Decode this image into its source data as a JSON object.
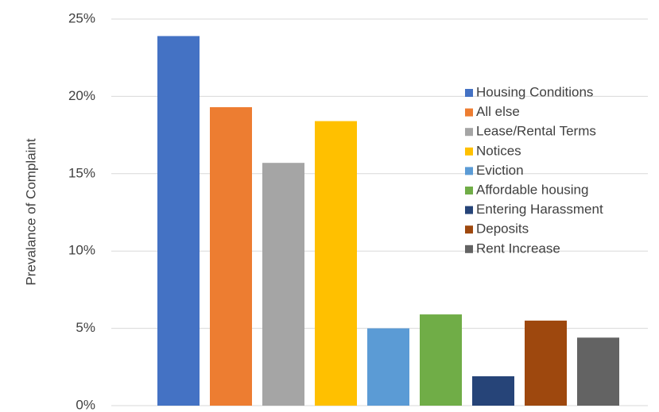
{
  "chart_data": {
    "type": "bar",
    "y_label": "Prevalance of Complaint",
    "categories": [
      null
    ],
    "series": [
      {
        "name": "Housing Conditions",
        "color": "#4472c4",
        "values": [
          23.9
        ]
      },
      {
        "name": "All else",
        "color": "#ed7d31",
        "values": [
          19.3
        ]
      },
      {
        "name": "Lease/Rental Terms",
        "color": "#a5a5a5",
        "values": [
          15.7
        ]
      },
      {
        "name": "Notices",
        "color": "#ffc000",
        "values": [
          18.4
        ]
      },
      {
        "name": "Eviction",
        "color": "#5b9bd5",
        "values": [
          5.0
        ]
      },
      {
        "name": "Affordable housing",
        "color": "#70ad47",
        "values": [
          5.9
        ]
      },
      {
        "name": "Entering Harassment",
        "color": "#264478",
        "values": [
          1.9
        ]
      },
      {
        "name": "Deposits",
        "color": "#9e480e",
        "values": [
          5.5
        ]
      },
      {
        "name": "Rent Increase",
        "color": "#636363",
        "values": [
          4.4
        ]
      }
    ],
    "ylim": [
      0,
      25
    ],
    "yticks": [
      {
        "value": 0,
        "label": "0%"
      },
      {
        "value": 5,
        "label": "5%"
      },
      {
        "value": 10,
        "label": "10%"
      },
      {
        "value": 15,
        "label": "15%"
      },
      {
        "value": 20,
        "label": "20%"
      },
      {
        "value": 25,
        "label": "25%"
      }
    ],
    "grid": true,
    "legend": "right"
  }
}
